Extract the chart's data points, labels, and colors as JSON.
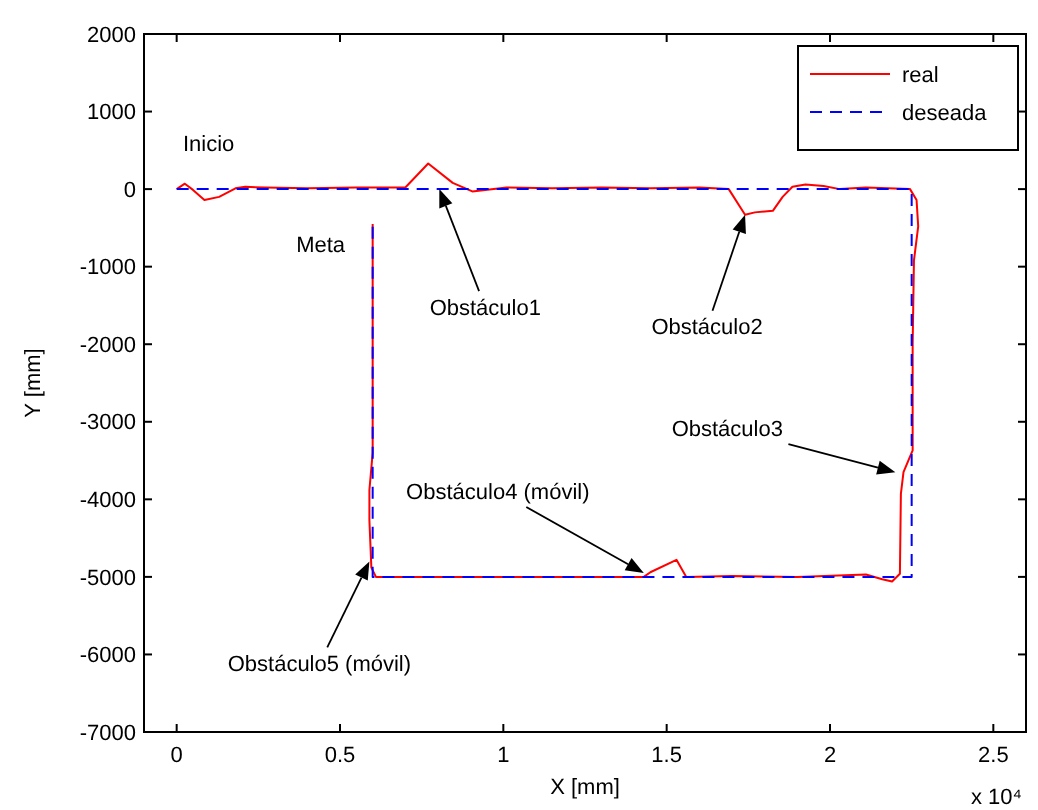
{
  "chart_data": {
    "type": "line",
    "xlabel": "X [mm]",
    "ylabel": "Y [mm]",
    "xlim": [
      -0.1,
      2.6
    ],
    "ylim": [
      -7000,
      2000
    ],
    "xticks": [
      0,
      0.5,
      1,
      1.5,
      2,
      2.5
    ],
    "yticks": [
      -7000,
      -6000,
      -5000,
      -4000,
      -3000,
      -2000,
      -1000,
      0,
      1000,
      2000
    ],
    "grid": false,
    "legend": "top right",
    "marker": "none",
    "series": [
      {
        "name": "real",
        "color": "#ff0000",
        "line_style": "solid",
        "x": [
          0,
          0.025,
          0.05,
          0.085,
          0.13,
          0.18,
          0.21,
          0.27,
          0.4,
          0.55,
          0.7,
          0.77,
          0.845,
          0.905,
          1.01,
          1.15,
          1.3,
          1.45,
          1.6,
          1.69,
          1.74,
          1.77,
          1.825,
          1.855,
          1.885,
          1.925,
          1.98,
          2.03,
          2.11,
          2.245,
          2.265,
          2.27,
          2.257,
          2.253,
          2.253,
          2.225,
          2.217,
          2.214,
          2.19,
          2.16,
          2.11,
          1.9,
          1.7,
          1.56,
          1.53,
          1.45,
          1.43,
          1.2,
          0.9,
          0.61,
          0.596,
          0.59,
          0.59,
          0.6,
          0.6
        ],
        "values": [
          0,
          70,
          -10,
          -140,
          -100,
          10,
          30,
          20,
          10,
          20,
          20,
          330,
          80,
          -30,
          20,
          10,
          20,
          10,
          20,
          0,
          -330,
          -300,
          -280,
          -100,
          30,
          60,
          40,
          0,
          20,
          0,
          -140,
          -480,
          -920,
          -2000,
          -3370,
          -3650,
          -3930,
          -4960,
          -5060,
          -5030,
          -4970,
          -5000,
          -4990,
          -5000,
          -4780,
          -4940,
          -5000,
          -5000,
          -5000,
          -5000,
          -4880,
          -4270,
          -3880,
          -3400,
          -450
        ]
      },
      {
        "name": "deseada",
        "color": "#0000ff",
        "line_style": "dashed",
        "x": [
          0,
          2.25,
          2.25,
          0.6,
          0.6
        ],
        "values": [
          0,
          0,
          -5000,
          -5000,
          -450
        ]
      }
    ],
    "annotations": [
      {
        "text": "Inicio",
        "x": 0,
        "y": 0
      },
      {
        "text": "Meta",
        "x": 0.6,
        "y": -450
      },
      {
        "text": "Obstáculo1",
        "x": 0.804,
        "y": 0
      },
      {
        "text": "Obstáculo2",
        "x": 1.74,
        "y": -330
      },
      {
        "text": "Obstáculo3",
        "x": 2.2,
        "y": -3650
      },
      {
        "text": "Obstáculo4 (móvil)",
        "x": 1.43,
        "y": -4950
      },
      {
        "text": "Obstáculo5 (móvil)",
        "x": 0.59,
        "y": -4800
      },
      "x 10⁴"
    ]
  }
}
